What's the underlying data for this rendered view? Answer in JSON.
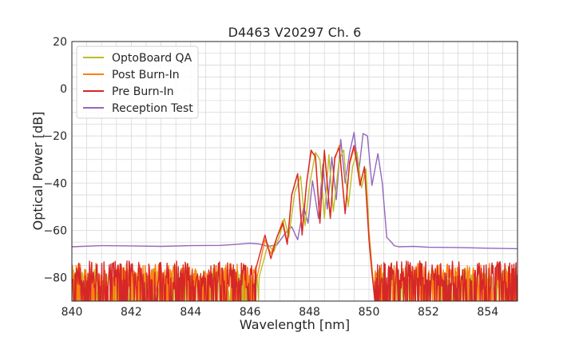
{
  "chart_data": {
    "type": "line",
    "title": "D4463 V20297 Ch. 6",
    "xlabel": "Wavelength [nm]",
    "ylabel": "Optical Power [dB]",
    "xlim": [
      840,
      855
    ],
    "ylim": [
      -90,
      20
    ],
    "xticks": [
      840,
      842,
      844,
      846,
      848,
      850,
      852,
      854
    ],
    "yticks": [
      20,
      0,
      -20,
      -40,
      -60,
      -80
    ],
    "xtick_labels": [
      "840",
      "842",
      "844",
      "846",
      "848",
      "850",
      "852",
      "854"
    ],
    "ytick_labels": [
      "20",
      "0",
      "−20",
      "−40",
      "−60",
      "−80"
    ],
    "grid": true,
    "legend_position": "top-left",
    "series": [
      {
        "name": "OptoBoard QA",
        "color": "#bcbd22",
        "noise": {
          "x_start": 840.0,
          "x_end": 846.3,
          "x_start2": 850.2,
          "x_end2": 855.0,
          "floor": -90,
          "top": -76
        },
        "x": [
          846.3,
          846.6,
          846.8,
          847.0,
          847.15,
          847.3,
          847.5,
          847.7,
          847.85,
          848.0,
          848.2,
          848.35,
          848.5,
          848.65,
          848.8,
          849.0,
          849.15,
          849.3,
          849.45,
          849.6,
          849.75,
          849.9,
          850.0,
          850.1,
          850.2
        ],
        "y": [
          -80,
          -66,
          -69,
          -62,
          -55,
          -63,
          -44,
          -37,
          -58,
          -41,
          -27,
          -30,
          -55,
          -28,
          -52,
          -30,
          -26,
          -50,
          -33,
          -27,
          -42,
          -34,
          -60,
          -75,
          -90
        ]
      },
      {
        "name": "Post Burn-In",
        "color": "#ff7f0e",
        "noise": {
          "x_start": 840.0,
          "x_end": 846.2,
          "x_start2": 850.2,
          "x_end2": 855.0,
          "floor": -90,
          "top": -74
        },
        "x": [
          846.2,
          846.5,
          846.7,
          846.9,
          847.1,
          847.25,
          847.4,
          847.6,
          847.75,
          847.9,
          848.05,
          848.2,
          848.35,
          848.5,
          848.7,
          848.85,
          849.0,
          849.2,
          849.35,
          849.5,
          849.7,
          849.85,
          850.0,
          850.1,
          850.2
        ],
        "y": [
          -82,
          -64,
          -70,
          -63,
          -56,
          -65,
          -45,
          -36,
          -60,
          -40,
          -27,
          -28,
          -56,
          -27,
          -54,
          -30,
          -24,
          -52,
          -32,
          -25,
          -40,
          -34,
          -62,
          -76,
          -90
        ]
      },
      {
        "name": "Pre Burn-In",
        "color": "#d62728",
        "noise": {
          "x_start": 840.0,
          "x_end": 846.2,
          "x_start2": 850.2,
          "x_end2": 855.0,
          "floor": -90,
          "top": -73
        },
        "x": [
          846.2,
          846.5,
          846.7,
          846.9,
          847.1,
          847.25,
          847.4,
          847.6,
          847.75,
          847.9,
          848.05,
          848.2,
          848.35,
          848.5,
          848.7,
          848.85,
          849.0,
          849.2,
          849.35,
          849.5,
          849.7,
          849.85,
          850.0,
          850.1,
          850.2
        ],
        "y": [
          -76,
          -62,
          -72,
          -63,
          -57,
          -66,
          -45,
          -36,
          -62,
          -40,
          -26,
          -29,
          -57,
          -26,
          -55,
          -29,
          -25,
          -53,
          -31,
          -24,
          -41,
          -33,
          -64,
          -78,
          -90
        ]
      },
      {
        "name": "Reception Test",
        "color": "#9467bd",
        "x": [
          840.0,
          841.0,
          842.0,
          843.0,
          844.0,
          845.0,
          845.5,
          846.0,
          846.3,
          846.6,
          846.9,
          847.2,
          847.4,
          847.6,
          847.8,
          847.95,
          848.1,
          848.3,
          848.45,
          848.6,
          848.75,
          848.9,
          849.05,
          849.2,
          849.35,
          849.5,
          849.65,
          849.8,
          849.95,
          850.1,
          850.3,
          850.45,
          850.6,
          850.75,
          850.85,
          851.0,
          851.5,
          852.0,
          853.0,
          854.0,
          855.0
        ],
        "y": [
          -67,
          -66.5,
          -66.6,
          -66.8,
          -66.5,
          -66.4,
          -66.0,
          -65.5,
          -65.8,
          -66.8,
          -66.2,
          -61.0,
          -58.5,
          -64.0,
          -50.0,
          -57.0,
          -39.0,
          -55.0,
          -32.0,
          -51.0,
          -29.0,
          -47.0,
          -21.5,
          -40.0,
          -27.0,
          -18.5,
          -36.0,
          -19.0,
          -20.0,
          -41.0,
          -27.5,
          -40.0,
          -63.0,
          -65.0,
          -66.5,
          -67.0,
          -66.8,
          -67.2,
          -67.3,
          -67.6,
          -67.8
        ]
      }
    ]
  }
}
